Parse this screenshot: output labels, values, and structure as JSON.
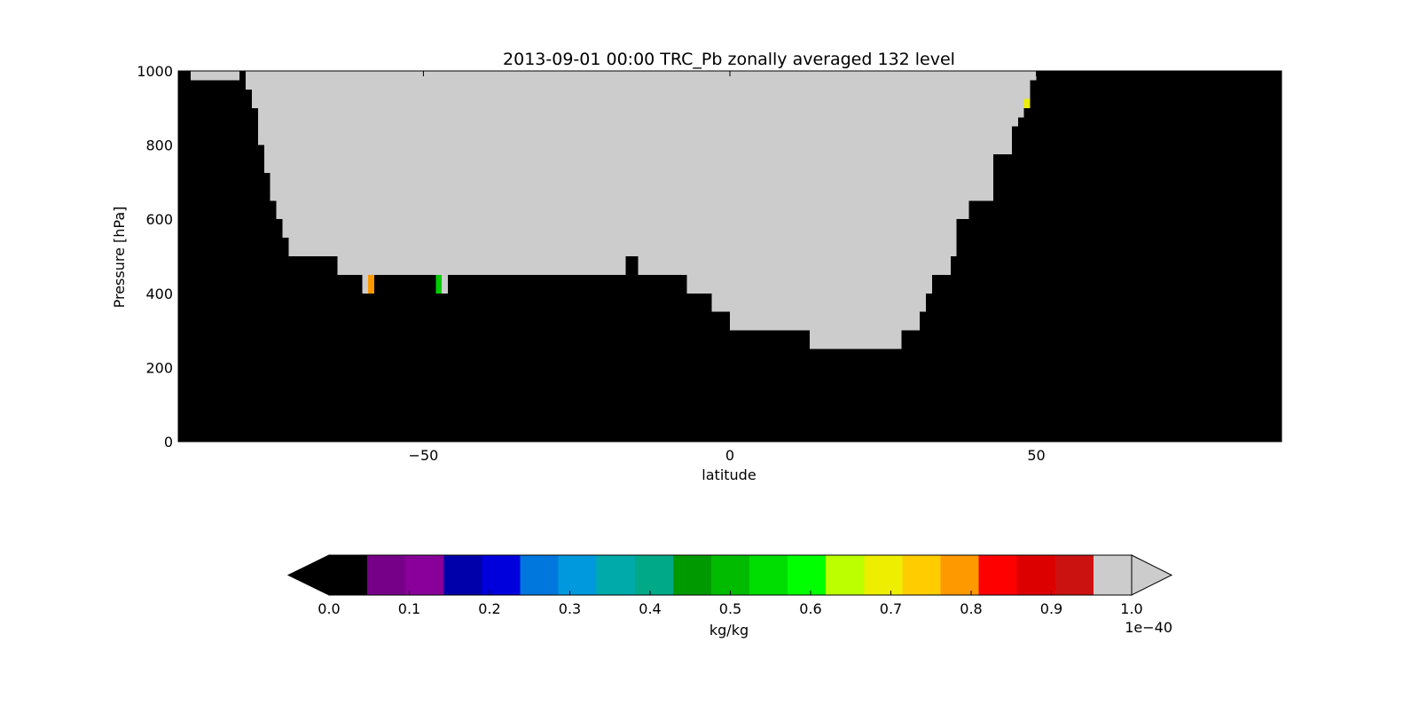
{
  "chart_data": {
    "type": "heatmap",
    "title": "2013-09-01 00:00 TRC_Pb zonally averaged 132 level",
    "xlabel": "latitude",
    "ylabel": "Pressure [hPa]",
    "xlim": [
      -90,
      90
    ],
    "ylim": [
      0,
      1000
    ],
    "xticks": [
      -50,
      0,
      50
    ],
    "xtick_labels": [
      "−50",
      "0",
      "50"
    ],
    "yticks": [
      0,
      200,
      400,
      600,
      800,
      1000
    ],
    "ytick_labels": [
      "0",
      "200",
      "400",
      "600",
      "800",
      "1000"
    ],
    "grid": false,
    "background_value_color": "#000000",
    "above_max_color": "#cccccc",
    "region_summary": "Values exceed colorbar max (gray) over a bowl-shaped region from about -80 to 50 latitude, extending from 1000 hPa down to between 250 and 500 hPa; everywhere else values are at or below 0 (black).",
    "gray_region_bottom_profile": [
      {
        "lat": -88.0,
        "p_bottom": 975
      },
      {
        "lat": -80.0,
        "p_bottom": 975
      },
      {
        "lat": -79.0,
        "p_bottom": 950
      },
      {
        "lat": -78.0,
        "p_bottom": 900
      },
      {
        "lat": -77.0,
        "p_bottom": 800
      },
      {
        "lat": -76.0,
        "p_bottom": 725
      },
      {
        "lat": -75.0,
        "p_bottom": 650
      },
      {
        "lat": -74.0,
        "p_bottom": 600
      },
      {
        "lat": -73.0,
        "p_bottom": 550
      },
      {
        "lat": -72.0,
        "p_bottom": 500
      },
      {
        "lat": -64.0,
        "p_bottom": 450
      },
      {
        "lat": -60.0,
        "p_bottom": 400
      },
      {
        "lat": -59.0,
        "p_bottom": 400
      },
      {
        "lat": -58.0,
        "p_bottom": 450
      },
      {
        "lat": -48.0,
        "p_bottom": 400
      },
      {
        "lat": -46.0,
        "p_bottom": 450
      },
      {
        "lat": -17.0,
        "p_bottom": 500
      },
      {
        "lat": -15.0,
        "p_bottom": 450
      },
      {
        "lat": -7.0,
        "p_bottom": 400
      },
      {
        "lat": -3.0,
        "p_bottom": 350
      },
      {
        "lat": 0.0,
        "p_bottom": 300
      },
      {
        "lat": 13.0,
        "p_bottom": 250
      },
      {
        "lat": 28.0,
        "p_bottom": 300
      },
      {
        "lat": 31.0,
        "p_bottom": 350
      },
      {
        "lat": 32.0,
        "p_bottom": 400
      },
      {
        "lat": 33.0,
        "p_bottom": 450
      },
      {
        "lat": 36.0,
        "p_bottom": 500
      },
      {
        "lat": 37.0,
        "p_bottom": 600
      },
      {
        "lat": 39.0,
        "p_bottom": 650
      },
      {
        "lat": 43.0,
        "p_bottom": 775
      },
      {
        "lat": 46.0,
        "p_bottom": 850
      },
      {
        "lat": 47.0,
        "p_bottom": 875
      },
      {
        "lat": 48.0,
        "p_bottom": 900
      },
      {
        "lat": 49.0,
        "p_bottom": 975
      }
    ],
    "gray_region_lat_range": [
      -88,
      50
    ],
    "black_notch": {
      "lat_range": [
        -80,
        -79
      ],
      "p_range": [
        975,
        1000
      ]
    },
    "black_bump": {
      "lat_range": [
        -17,
        -15
      ],
      "p_range": [
        450,
        500
      ]
    },
    "highlight_cells": [
      {
        "lat_range": [
          -59,
          -58
        ],
        "p_range": [
          400,
          450
        ],
        "value": 0.8,
        "color": "#ff9900"
      },
      {
        "lat_range": [
          -48,
          -47
        ],
        "p_range": [
          400,
          450
        ],
        "value": 0.55,
        "color": "#00cc00"
      },
      {
        "lat_range": [
          48,
          49
        ],
        "p_range": [
          900,
          925
        ],
        "value": 0.7,
        "color": "#eeee00"
      }
    ],
    "colorbar": {
      "label": "kg/kg",
      "scale_label": "1e−40",
      "tick_labels": [
        "0.0",
        "0.1",
        "0.2",
        "0.3",
        "0.4",
        "0.5",
        "0.6",
        "0.7",
        "0.8",
        "0.9",
        "1.0"
      ],
      "ticks": [
        0.0,
        0.1,
        0.2,
        0.3,
        0.4,
        0.5,
        0.6,
        0.7,
        0.8,
        0.9,
        1.0
      ],
      "range": [
        0.0,
        1.0
      ],
      "extend": "both",
      "under_color": "#000000",
      "over_color": "#cccccc",
      "bins": [
        {
          "from": 0.0,
          "to": 0.0476,
          "color": "#000000"
        },
        {
          "from": 0.0476,
          "to": 0.0952,
          "color": "#770088"
        },
        {
          "from": 0.0952,
          "to": 0.1429,
          "color": "#880099"
        },
        {
          "from": 0.1429,
          "to": 0.1905,
          "color": "#0000aa"
        },
        {
          "from": 0.1905,
          "to": 0.2381,
          "color": "#0000dd"
        },
        {
          "from": 0.2381,
          "to": 0.2857,
          "color": "#0077dd"
        },
        {
          "from": 0.2857,
          "to": 0.3333,
          "color": "#0099dd"
        },
        {
          "from": 0.3333,
          "to": 0.381,
          "color": "#00aaaa"
        },
        {
          "from": 0.381,
          "to": 0.4286,
          "color": "#00aa88"
        },
        {
          "from": 0.4286,
          "to": 0.4762,
          "color": "#009900"
        },
        {
          "from": 0.4762,
          "to": 0.5238,
          "color": "#00bb00"
        },
        {
          "from": 0.5238,
          "to": 0.5714,
          "color": "#00dd00"
        },
        {
          "from": 0.5714,
          "to": 0.619,
          "color": "#00ff00"
        },
        {
          "from": 0.619,
          "to": 0.6667,
          "color": "#bbff00"
        },
        {
          "from": 0.6667,
          "to": 0.7143,
          "color": "#eeee00"
        },
        {
          "from": 0.7143,
          "to": 0.7619,
          "color": "#ffcc00"
        },
        {
          "from": 0.7619,
          "to": 0.8095,
          "color": "#ff9900"
        },
        {
          "from": 0.8095,
          "to": 0.8571,
          "color": "#ff0000"
        },
        {
          "from": 0.8571,
          "to": 0.9048,
          "color": "#dd0000"
        },
        {
          "from": 0.9048,
          "to": 0.9524,
          "color": "#cc1111"
        },
        {
          "from": 0.9524,
          "to": 1.0,
          "color": "#cccccc"
        }
      ]
    }
  }
}
